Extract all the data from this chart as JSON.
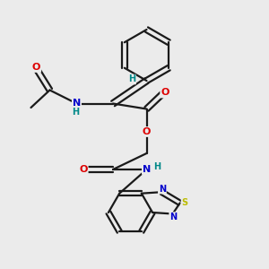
{
  "bg_color": "#ebebeb",
  "bond_color": "#1a1a1a",
  "bond_width": 1.6,
  "atom_colors": {
    "O": "#dd0000",
    "N": "#0000cc",
    "S": "#bbbb00",
    "H": "#008888",
    "C": "#1a1a1a"
  },
  "font_size_atom": 8,
  "fig_size": [
    3.0,
    3.0
  ],
  "dpi": 100
}
